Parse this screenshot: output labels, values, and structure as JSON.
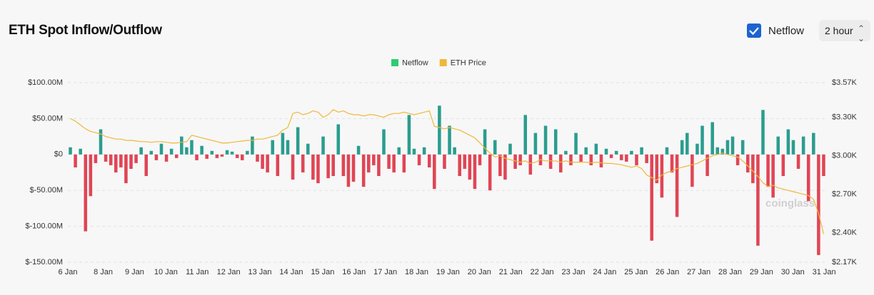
{
  "header": {
    "title": "ETH Spot Inflow/Outflow"
  },
  "controls": {
    "checkbox_label": "Netflow",
    "interval": "2 hour"
  },
  "watermark": "coinglass",
  "chart_data": {
    "type": "bar-line",
    "categories": [
      null,
      null,
      null,
      null,
      null,
      null,
      null,
      null,
      null,
      null,
      null,
      null,
      null,
      null,
      null,
      null,
      null,
      null,
      null,
      null,
      null,
      null,
      null,
      null,
      null,
      null,
      null,
      null,
      null,
      null,
      null,
      null,
      null,
      null,
      null,
      null,
      null,
      null,
      null,
      null,
      null,
      null,
      null,
      null,
      null,
      null,
      null,
      null,
      null,
      null,
      null,
      null,
      null,
      null,
      null,
      null,
      null,
      null,
      null,
      null,
      null,
      null,
      null,
      null,
      null,
      null,
      null,
      null,
      null,
      null,
      null,
      null,
      null,
      null,
      null,
      null,
      null,
      null,
      null,
      null,
      null,
      null,
      null,
      null,
      null,
      null,
      null,
      null,
      null,
      null,
      null,
      null,
      null,
      null,
      null,
      null,
      null,
      null,
      null,
      null,
      null,
      null,
      null,
      null,
      null,
      null,
      null,
      null,
      null,
      null,
      null,
      null,
      null,
      null,
      null,
      null,
      null,
      null,
      null,
      null,
      null,
      null,
      null,
      null,
      null,
      null,
      null,
      null,
      null,
      null,
      null,
      null,
      null,
      null,
      null,
      null,
      null,
      null,
      null,
      null,
      null,
      null,
      null,
      null,
      null,
      null,
      null,
      null,
      null,
      null
    ],
    "series": [
      {
        "name": "Netflow",
        "type": "bar",
        "color": "#2a9d8f",
        "negative_color": "#e04555",
        "legend_color": "#2ecc71",
        "values": [
          10,
          -18,
          8,
          -107,
          -58,
          -12,
          35,
          -10,
          -15,
          -25,
          -18,
          -40,
          -20,
          -12,
          10,
          -30,
          5,
          -8,
          15,
          -10,
          8,
          -5,
          25,
          10,
          20,
          -8,
          12,
          -6,
          5,
          -5,
          -3,
          6,
          4,
          -5,
          -8,
          5,
          25,
          -10,
          -20,
          -25,
          20,
          -30,
          30,
          20,
          -35,
          38,
          -25,
          15,
          -35,
          -40,
          25,
          -33,
          -30,
          42,
          -30,
          -45,
          -38,
          12,
          -45,
          -25,
          -15,
          -30,
          35,
          -20,
          -25,
          10,
          -25,
          55,
          8,
          -15,
          10,
          -18,
          -48,
          68,
          -20,
          40,
          10,
          -30,
          -20,
          -35,
          -48,
          -15,
          35,
          -50,
          20,
          -30,
          -35,
          15,
          -20,
          -15,
          55,
          -28,
          30,
          -15,
          40,
          -20,
          35,
          -25,
          5,
          -15,
          30,
          -10,
          10,
          -15,
          15,
          -18,
          8,
          -5,
          5,
          -8,
          -10,
          5,
          -15,
          10,
          -12,
          -120,
          -40,
          -60,
          10,
          -25,
          -87,
          20,
          30,
          -45,
          15,
          40,
          -30,
          45,
          10,
          8,
          20,
          25,
          -15,
          20,
          -25,
          -40,
          -127,
          62,
          -45,
          -60,
          25,
          -30,
          35,
          20,
          -20,
          25,
          -65,
          30,
          -140,
          -30
        ]
      },
      {
        "name": "ETH Price",
        "type": "line",
        "axis": "y2",
        "color": "#f0b73a",
        "values": [
          3290,
          3270,
          3240,
          3210,
          3190,
          3180,
          3170,
          3150,
          3140,
          3130,
          3130,
          3120,
          3120,
          3115,
          3110,
          3110,
          3105,
          3110,
          3110,
          3105,
          3100,
          3100,
          3105,
          3110,
          3160,
          3150,
          3140,
          3130,
          3120,
          3110,
          3100,
          3100,
          3105,
          3110,
          3115,
          3120,
          3120,
          3130,
          3130,
          3140,
          3150,
          3160,
          3200,
          3220,
          3330,
          3340,
          3320,
          3330,
          3350,
          3340,
          3300,
          3320,
          3360,
          3340,
          3350,
          3330,
          3320,
          3320,
          3310,
          3320,
          3320,
          3310,
          3300,
          3320,
          3330,
          3330,
          3340,
          3330,
          3320,
          3330,
          3340,
          3350,
          3230,
          3220,
          3210,
          3220,
          3210,
          3200,
          3180,
          3160,
          3140,
          3100,
          3060,
          3020,
          2990,
          3000,
          2980,
          2970,
          2960,
          2950,
          2960,
          2940,
          2950,
          2970,
          2960,
          2960,
          2960,
          2950,
          2960,
          2950,
          2950,
          2950,
          2950,
          2945,
          2950,
          2945,
          2940,
          2940,
          2935,
          2930,
          2920,
          2910,
          2920,
          2900,
          2850,
          2830,
          2810,
          2850,
          2870,
          2880,
          2900,
          2910,
          2920,
          2930,
          2940,
          2960,
          2980,
          3000,
          3010,
          3020,
          3010,
          3000,
          2990,
          2960,
          2920,
          2880,
          2840,
          2790,
          2760,
          2770,
          2750,
          2740,
          2730,
          2720,
          2710,
          2700,
          2690,
          2660,
          2550,
          2390
        ]
      }
    ],
    "ylim": [
      -150,
      100
    ],
    "yticks": [
      {
        "value": -150,
        "label": "$-150.00M"
      },
      {
        "value": -100,
        "label": "$-100.00M"
      },
      {
        "value": -50,
        "label": "$-50.00M"
      },
      {
        "value": 0,
        "label": "$0"
      },
      {
        "value": 50,
        "label": "$50.00M"
      },
      {
        "value": 100,
        "label": "$100.00M"
      }
    ],
    "y2lim": [
      2170,
      3570
    ],
    "y2ticks": [
      {
        "value": 2170,
        "label": "$2.17K"
      },
      {
        "value": 2400,
        "label": "$2.40K"
      },
      {
        "value": 2700,
        "label": "$2.70K"
      },
      {
        "value": 3000,
        "label": "$3.00K"
      },
      {
        "value": 3300,
        "label": "$3.30K"
      },
      {
        "value": 3570,
        "label": "$3.57K"
      }
    ],
    "xticks": [
      {
        "value": 0,
        "label": "6 Jan"
      },
      {
        "value": 7,
        "label": "8 Jan"
      },
      {
        "value": 13.2,
        "label": "9 Jan"
      },
      {
        "value": 19.4,
        "label": "10 Jan"
      },
      {
        "value": 25.6,
        "label": "11 Jan"
      },
      {
        "value": 31.8,
        "label": "12 Jan"
      },
      {
        "value": 38,
        "label": "13 Jan"
      },
      {
        "value": 44.2,
        "label": "14 Jan"
      },
      {
        "value": 50.4,
        "label": "15 Jan"
      },
      {
        "value": 56.6,
        "label": "16 Jan"
      },
      {
        "value": 62.8,
        "label": "17 Jan"
      },
      {
        "value": 69,
        "label": "18 Jan"
      },
      {
        "value": 75.2,
        "label": "19 Jan"
      },
      {
        "value": 81.4,
        "label": "20 Jan"
      },
      {
        "value": 87.6,
        "label": "21 Jan"
      },
      {
        "value": 93.8,
        "label": "22 Jan"
      },
      {
        "value": 100,
        "label": "23 Jan"
      },
      {
        "value": 106.2,
        "label": "24 Jan"
      },
      {
        "value": 112.4,
        "label": "25 Jan"
      },
      {
        "value": 118.6,
        "label": "26 Jan"
      },
      {
        "value": 124.8,
        "label": "27 Jan"
      },
      {
        "value": 131,
        "label": "28 Jan"
      },
      {
        "value": 137.2,
        "label": "29 Jan"
      },
      {
        "value": 143.4,
        "label": "30 Jan"
      },
      {
        "value": 149.6,
        "label": "31 Jan"
      }
    ],
    "grid": true,
    "legend_position": "top"
  }
}
